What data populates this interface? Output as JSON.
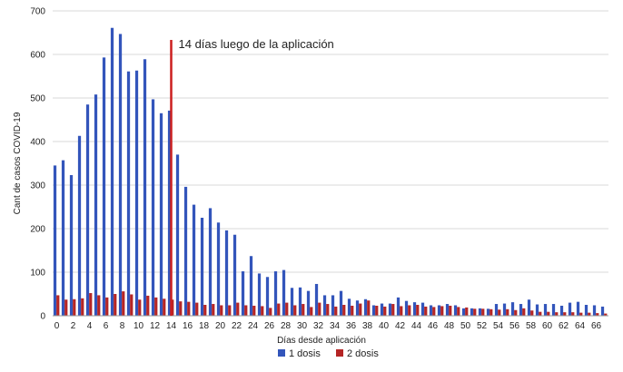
{
  "chart_data": {
    "type": "bar",
    "xlabel": "Días desde aplicación",
    "ylabel": "Cant de casos COVID-19",
    "ylim": [
      0,
      700
    ],
    "yticks": [
      0,
      100,
      200,
      300,
      400,
      500,
      600,
      700
    ],
    "x": [
      0,
      1,
      2,
      3,
      4,
      5,
      6,
      7,
      8,
      9,
      10,
      11,
      12,
      13,
      14,
      15,
      16,
      17,
      18,
      19,
      20,
      21,
      22,
      23,
      24,
      25,
      26,
      27,
      28,
      29,
      30,
      31,
      32,
      33,
      34,
      35,
      36,
      37,
      38,
      39,
      40,
      41,
      42,
      43,
      44,
      45,
      46,
      47,
      48,
      49,
      50,
      51,
      52,
      53,
      54,
      55,
      56,
      57,
      58,
      59,
      60,
      61,
      62,
      63,
      64,
      65,
      66,
      67
    ],
    "xtick_labels": [
      "0",
      "2",
      "4",
      "6",
      "8",
      "10",
      "12",
      "14",
      "16",
      "18",
      "20",
      "22",
      "24",
      "26",
      "28",
      "30",
      "32",
      "34",
      "36",
      "38",
      "40",
      "42",
      "44",
      "46",
      "48",
      "50",
      "52",
      "54",
      "56",
      "58",
      "60",
      "62",
      "64",
      "66"
    ],
    "grid": true,
    "legend_position": "bottom",
    "series": [
      {
        "name": "1 dosis",
        "color": "#3355bb",
        "values": [
          345,
          357,
          323,
          413,
          485,
          508,
          593,
          661,
          647,
          561,
          563,
          589,
          497,
          465,
          471,
          370,
          296,
          255,
          225,
          247,
          214,
          196,
          186,
          102,
          137,
          97,
          89,
          102,
          105,
          64,
          65,
          57,
          73,
          47,
          47,
          57,
          39,
          35,
          38,
          24,
          28,
          28,
          42,
          34,
          31,
          30,
          24,
          24,
          27,
          24,
          17,
          17,
          17,
          16,
          27,
          28,
          31,
          27,
          37,
          26,
          27,
          27,
          23,
          30,
          32,
          25,
          24,
          21
        ]
      },
      {
        "name": "2 dosis",
        "color": "#b52525",
        "values": [
          47,
          37,
          38,
          40,
          52,
          47,
          42,
          50,
          56,
          49,
          37,
          46,
          42,
          39,
          37,
          33,
          32,
          30,
          25,
          27,
          24,
          24,
          30,
          24,
          23,
          22,
          18,
          28,
          30,
          24,
          27,
          20,
          30,
          27,
          21,
          25,
          23,
          28,
          35,
          23,
          21,
          27,
          22,
          24,
          25,
          21,
          20,
          22,
          23,
          20,
          19,
          16,
          16,
          15,
          14,
          15,
          13,
          17,
          12,
          9,
          9,
          8,
          8,
          8,
          7,
          7,
          6,
          5
        ]
      }
    ],
    "annotations": [
      {
        "text": "14 días luego de la aplicación",
        "x": 14,
        "color": "#cc1f1f"
      }
    ]
  }
}
